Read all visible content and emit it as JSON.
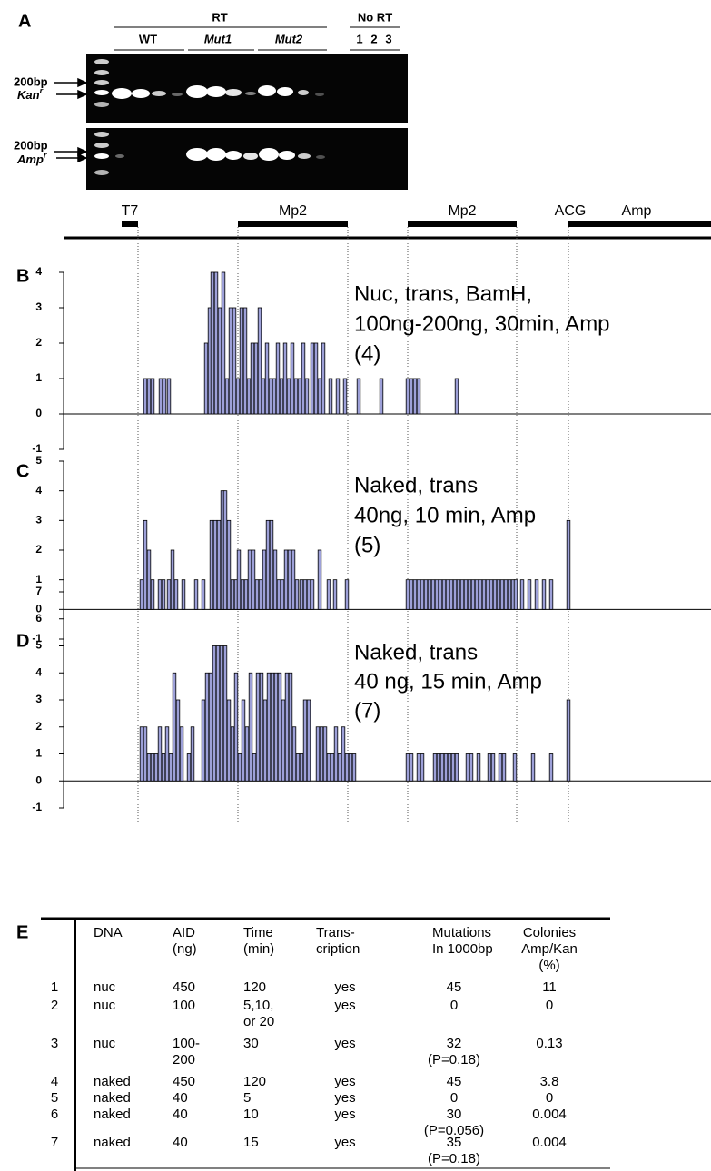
{
  "gel": {
    "panel": "A",
    "rt": "RT",
    "wt": "WT",
    "mut1": "Mut1",
    "mut2": "Mut2",
    "no_rt": "No RT",
    "lanes": [
      "1",
      "2",
      "3"
    ],
    "top_marker": "200bp",
    "top_gene": {
      "text": "Kan",
      "sup": "r"
    },
    "bottom_marker": "200bp",
    "bottom_gene": {
      "text": "Amp",
      "sup": "r"
    }
  },
  "map": {
    "features": [
      {
        "label": "T7",
        "start": 64,
        "end": 82
      },
      {
        "label": "Mp2",
        "start": 192,
        "end": 313
      },
      {
        "label": "Mp2",
        "start": 379,
        "end": 499
      },
      {
        "label": "Amp",
        "start": 556,
        "end": 713
      }
    ],
    "site": "ACG"
  },
  "chart_data": [
    {
      "type": "bar",
      "panel": "B",
      "annotation": [
        "Nuc, trans, BamH,",
        "100ng-200ng, 30min, Amp",
        "(4)"
      ],
      "color": "#9da0d8",
      "xlim": [
        0,
        713
      ],
      "ylim": [
        -1,
        4
      ],
      "yticks": [
        -1,
        0,
        1,
        2,
        3,
        4
      ],
      "x": [
        90,
        94,
        98,
        107,
        111,
        116,
        157,
        161,
        164,
        168,
        172,
        176,
        180,
        184,
        188,
        192,
        196,
        200,
        204,
        208,
        212,
        216,
        220,
        224,
        228,
        232,
        236,
        240,
        244,
        248,
        252,
        256,
        260,
        264,
        268,
        274,
        278,
        282,
        286,
        294,
        302,
        310,
        325,
        350,
        379,
        383,
        387,
        391,
        433
      ],
      "values": [
        1,
        1,
        1,
        1,
        1,
        1,
        2,
        3,
        4,
        4,
        3,
        4,
        1,
        3,
        3,
        1,
        3,
        3,
        1,
        2,
        2,
        3,
        1,
        2,
        1,
        1,
        2,
        1,
        2,
        1,
        2,
        1,
        1,
        2,
        1,
        2,
        2,
        1,
        2,
        1,
        1,
        1,
        1,
        1,
        1,
        1,
        1,
        1,
        1
      ]
    },
    {
      "type": "bar",
      "panel": "C",
      "annotation": [
        "Naked, trans",
        "40ng, 10 min, Amp",
        "(5)"
      ],
      "color": "#9da0d8",
      "xlim": [
        0,
        713
      ],
      "ylim": [
        -1,
        5
      ],
      "yticks": [
        -1,
        0,
        1,
        2,
        3,
        4,
        5
      ],
      "x": [
        86,
        90,
        94,
        98,
        106,
        110,
        116,
        120,
        124,
        132,
        146,
        154,
        163,
        167,
        171,
        175,
        178,
        182,
        186,
        190,
        193,
        197,
        201,
        205,
        209,
        213,
        217,
        221,
        225,
        229,
        233,
        237,
        241,
        245,
        249,
        253,
        257,
        262,
        266,
        270,
        274,
        282,
        292,
        299,
        312,
        379,
        383,
        387,
        391,
        395,
        399,
        403,
        407,
        411,
        415,
        419,
        423,
        427,
        431,
        435,
        439,
        443,
        447,
        451,
        455,
        459,
        463,
        467,
        471,
        475,
        479,
        483,
        487,
        491,
        495,
        498,
        505,
        513,
        521,
        529,
        537,
        556
      ],
      "values": [
        1,
        3,
        2,
        1,
        1,
        1,
        1,
        2,
        1,
        1,
        1,
        1,
        3,
        3,
        3,
        4,
        4,
        3,
        1,
        1,
        2,
        1,
        1,
        2,
        2,
        1,
        1,
        2,
        3,
        3,
        2,
        1,
        1,
        2,
        2,
        2,
        1,
        1,
        1,
        1,
        1,
        2,
        1,
        1,
        1,
        1,
        1,
        1,
        1,
        1,
        1,
        1,
        1,
        1,
        1,
        1,
        1,
        1,
        1,
        1,
        1,
        1,
        1,
        1,
        1,
        1,
        1,
        1,
        1,
        1,
        1,
        1,
        1,
        1,
        1,
        1,
        1,
        1,
        1,
        1,
        1,
        3
      ]
    },
    {
      "type": "bar",
      "panel": "D",
      "annotation": [
        "Naked, trans",
        "40 ng, 15 min, Amp",
        "(7)"
      ],
      "color": "#9da0d8",
      "xlim": [
        0,
        713
      ],
      "ylim": [
        -1,
        7
      ],
      "yticks": [
        -1,
        0,
        1,
        2,
        3,
        4,
        5,
        6,
        7
      ],
      "x": [
        86,
        90,
        94,
        98,
        102,
        106,
        110,
        114,
        118,
        122,
        126,
        130,
        138,
        142,
        154,
        158,
        162,
        166,
        170,
        174,
        178,
        182,
        186,
        190,
        194,
        198,
        202,
        206,
        210,
        214,
        218,
        222,
        226,
        230,
        234,
        238,
        242,
        246,
        250,
        254,
        258,
        262,
        266,
        270,
        280,
        284,
        288,
        292,
        296,
        300,
        304,
        308,
        312,
        316,
        320,
        379,
        383,
        391,
        395,
        409,
        413,
        417,
        421,
        425,
        429,
        433,
        445,
        449,
        457,
        469,
        473,
        481,
        485,
        497,
        517,
        537,
        556
      ],
      "values": [
        2,
        2,
        1,
        1,
        1,
        2,
        1,
        2,
        1,
        4,
        3,
        2,
        1,
        2,
        3,
        4,
        4,
        5,
        5,
        5,
        5,
        3,
        2,
        4,
        1,
        3,
        2,
        4,
        1,
        4,
        4,
        3,
        4,
        4,
        4,
        4,
        3,
        4,
        4,
        2,
        1,
        1,
        3,
        3,
        2,
        2,
        2,
        1,
        1,
        2,
        1,
        2,
        1,
        1,
        1,
        1,
        1,
        1,
        1,
        1,
        1,
        1,
        1,
        1,
        1,
        1,
        1,
        1,
        1,
        1,
        1,
        1,
        1,
        1,
        1,
        1,
        3
      ]
    }
  ],
  "table": {
    "panel": "E",
    "header": [
      [],
      [
        "DNA"
      ],
      [
        "AID",
        "(ng)"
      ],
      [
        "Time",
        "(min)"
      ],
      [
        "Trans-",
        "cription"
      ],
      [
        "Mutations",
        "In 1000bp"
      ],
      [
        "Colonies",
        "Amp/Kan",
        "(%)"
      ]
    ],
    "rows": [
      [
        [
          "1"
        ],
        [
          "nuc"
        ],
        [
          "450"
        ],
        [
          "120"
        ],
        [
          "yes"
        ],
        [
          "45"
        ],
        [
          "11"
        ]
      ],
      [
        [
          "2"
        ],
        [
          "nuc"
        ],
        [
          "100"
        ],
        [
          "5,10,",
          "or 20"
        ],
        [
          "yes"
        ],
        [
          "0"
        ],
        [
          "0"
        ]
      ],
      [
        [
          "3"
        ],
        [
          "nuc"
        ],
        [
          "100-",
          "200"
        ],
        [
          "30"
        ],
        [
          "yes"
        ],
        [
          "32",
          "(P=0.18)"
        ],
        [
          "0.13"
        ]
      ],
      [
        [
          "4"
        ],
        [
          "naked"
        ],
        [
          "450"
        ],
        [
          "120"
        ],
        [
          "yes"
        ],
        [
          "45"
        ],
        [
          "3.8"
        ]
      ],
      [
        [
          "5"
        ],
        [
          "naked"
        ],
        [
          "40"
        ],
        [
          "5"
        ],
        [
          "yes"
        ],
        [
          "0"
        ],
        [
          "0"
        ]
      ],
      [
        [
          "6"
        ],
        [
          "naked"
        ],
        [
          "40"
        ],
        [
          "10"
        ],
        [
          "yes"
        ],
        [
          "30",
          "(P=0.056)"
        ],
        [
          "0.004"
        ]
      ],
      [
        [
          "7"
        ],
        [
          "naked"
        ],
        [
          "40"
        ],
        [
          "15"
        ],
        [
          "yes"
        ],
        [
          "35",
          "(P=0.18)"
        ],
        [
          "0.004"
        ]
      ]
    ]
  }
}
